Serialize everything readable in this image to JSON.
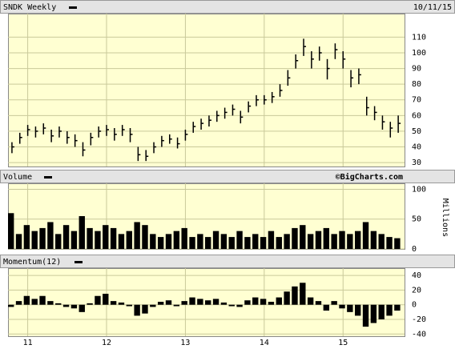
{
  "chart_data": [
    {
      "type": "ohlc",
      "title": "SNDK Weekly",
      "date": "10/11/15",
      "color": "#000000",
      "x": [
        10.8,
        10.9,
        11.0,
        11.1,
        11.2,
        11.3,
        11.4,
        11.5,
        11.6,
        11.7,
        11.8,
        11.9,
        12.0,
        12.1,
        12.2,
        12.3,
        12.4,
        12.5,
        12.6,
        12.7,
        12.8,
        12.9,
        13.0,
        13.1,
        13.2,
        13.3,
        13.4,
        13.5,
        13.6,
        13.7,
        13.8,
        13.9,
        14.0,
        14.1,
        14.2,
        14.3,
        14.4,
        14.5,
        14.6,
        14.7,
        14.8,
        14.9,
        15.0,
        15.1,
        15.2,
        15.3,
        15.4,
        15.5,
        15.6,
        15.7
      ],
      "high": [
        43,
        49,
        54,
        53,
        55,
        51,
        53,
        50,
        48,
        43,
        49,
        53,
        54,
        52,
        54,
        52,
        40,
        38,
        43,
        47,
        48,
        46,
        51,
        56,
        58,
        60,
        63,
        65,
        67,
        63,
        69,
        73,
        73,
        75,
        80,
        89,
        99,
        109,
        101,
        104,
        96,
        106,
        101,
        89,
        90,
        72,
        66,
        60,
        56,
        60
      ],
      "low": [
        36,
        42,
        47,
        46,
        48,
        43,
        46,
        42,
        40,
        34,
        41,
        46,
        47,
        44,
        47,
        43,
        31,
        31,
        36,
        40,
        42,
        39,
        44,
        49,
        51,
        53,
        56,
        58,
        60,
        55,
        62,
        66,
        67,
        68,
        72,
        79,
        90,
        98,
        90,
        95,
        83,
        96,
        90,
        78,
        80,
        60,
        57,
        51,
        46,
        49
      ],
      "close": [
        40,
        46,
        51,
        50,
        52,
        47,
        50,
        46,
        44,
        38,
        46,
        50,
        51,
        48,
        51,
        48,
        35,
        34,
        40,
        44,
        45,
        42,
        48,
        53,
        55,
        57,
        60,
        62,
        64,
        59,
        66,
        70,
        70,
        72,
        76,
        84,
        95,
        104,
        96,
        100,
        90,
        102,
        96,
        84,
        86,
        65,
        62,
        56,
        52,
        55
      ],
      "xlim": [
        10.75,
        15.78
      ],
      "ylim": [
        27.5,
        125
      ],
      "yticks": [
        30,
        40,
        50,
        60,
        70,
        80,
        90,
        100,
        110
      ],
      "grid": true
    },
    {
      "type": "bar",
      "title": "Volume",
      "source": "©BigCharts.com",
      "y_unit": "Millions",
      "color": "#000000",
      "x": [
        10.8,
        10.9,
        11.0,
        11.1,
        11.2,
        11.3,
        11.4,
        11.5,
        11.6,
        11.7,
        11.8,
        11.9,
        12.0,
        12.1,
        12.2,
        12.3,
        12.4,
        12.5,
        12.6,
        12.7,
        12.8,
        12.9,
        13.0,
        13.1,
        13.2,
        13.3,
        13.4,
        13.5,
        13.6,
        13.7,
        13.8,
        13.9,
        14.0,
        14.1,
        14.2,
        14.3,
        14.4,
        14.5,
        14.6,
        14.7,
        14.8,
        14.9,
        15.0,
        15.1,
        15.2,
        15.3,
        15.4,
        15.5,
        15.6,
        15.7
      ],
      "values": [
        60,
        25,
        40,
        30,
        35,
        45,
        25,
        40,
        30,
        55,
        35,
        30,
        40,
        35,
        25,
        30,
        45,
        40,
        25,
        20,
        25,
        30,
        35,
        20,
        25,
        20,
        30,
        25,
        20,
        30,
        20,
        25,
        20,
        30,
        20,
        25,
        35,
        40,
        25,
        30,
        35,
        25,
        30,
        25,
        30,
        45,
        30,
        25,
        20,
        18
      ],
      "xlim": [
        10.75,
        15.78
      ],
      "ylim": [
        0,
        110
      ],
      "yticks": [
        0,
        50,
        100
      ],
      "grid": true
    },
    {
      "type": "bar",
      "title": "Momentum(12)",
      "color": "#000000",
      "x": [
        10.8,
        10.9,
        11.0,
        11.1,
        11.2,
        11.3,
        11.4,
        11.5,
        11.6,
        11.7,
        11.8,
        11.9,
        12.0,
        12.1,
        12.2,
        12.3,
        12.4,
        12.5,
        12.6,
        12.7,
        12.8,
        12.9,
        13.0,
        13.1,
        13.2,
        13.3,
        13.4,
        13.5,
        13.6,
        13.7,
        13.8,
        13.9,
        14.0,
        14.1,
        14.2,
        14.3,
        14.4,
        14.5,
        14.6,
        14.7,
        14.8,
        14.9,
        15.0,
        15.1,
        15.2,
        15.3,
        15.4,
        15.5,
        15.6,
        15.7
      ],
      "values": [
        -3,
        5,
        12,
        8,
        12,
        5,
        2,
        -3,
        -5,
        -10,
        2,
        12,
        15,
        5,
        3,
        -2,
        -15,
        -12,
        -3,
        4,
        6,
        -2,
        5,
        10,
        8,
        6,
        8,
        3,
        -2,
        -3,
        6,
        10,
        8,
        4,
        10,
        18,
        25,
        30,
        10,
        5,
        -8,
        5,
        -5,
        -10,
        -15,
        -30,
        -25,
        -20,
        -15,
        -8
      ],
      "xlim": [
        10.75,
        15.78
      ],
      "xticks": [
        11,
        12,
        13,
        14,
        15
      ],
      "ylim": [
        -43,
        50
      ],
      "yticks": [
        -40,
        -20,
        0,
        20,
        40
      ],
      "grid": true
    }
  ]
}
